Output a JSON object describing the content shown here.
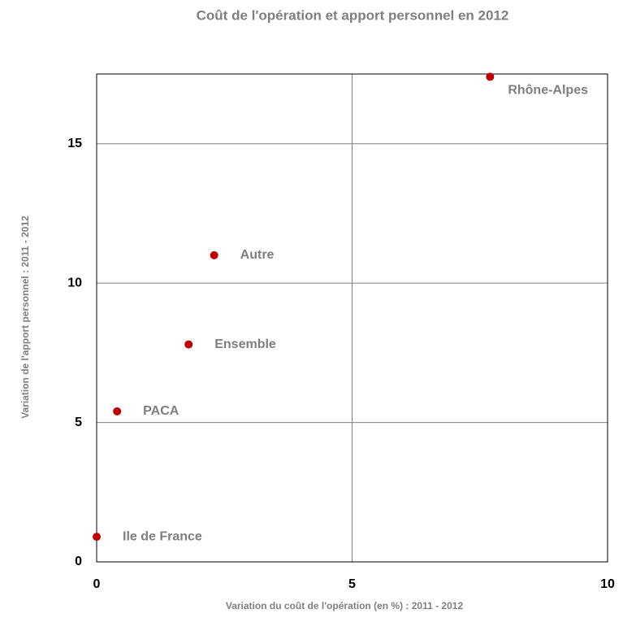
{
  "chart_data": {
    "type": "scatter",
    "title": "Coût de l'opération et apport personnel en 2012",
    "xlabel": "Variation du coût de l'opération (en %)  :  2011 - 2012",
    "ylabel": "Variation de l'apport personnel : 2011 - 2012",
    "x": [
      0,
      0.4,
      1.8,
      2.3,
      7.7
    ],
    "values": [
      0.9,
      5.4,
      7.8,
      11.0,
      17.4
    ],
    "labels": [
      "Ile de France",
      "PACA",
      "Ensemble",
      "Autre",
      "Rhône-Alpes"
    ],
    "color": "#c00000",
    "xlim": [
      0,
      10
    ],
    "ylim": [
      0,
      17.5
    ],
    "xticks": [
      0,
      5,
      10
    ],
    "yticks": [
      0,
      5,
      10,
      15
    ],
    "grid": true
  }
}
